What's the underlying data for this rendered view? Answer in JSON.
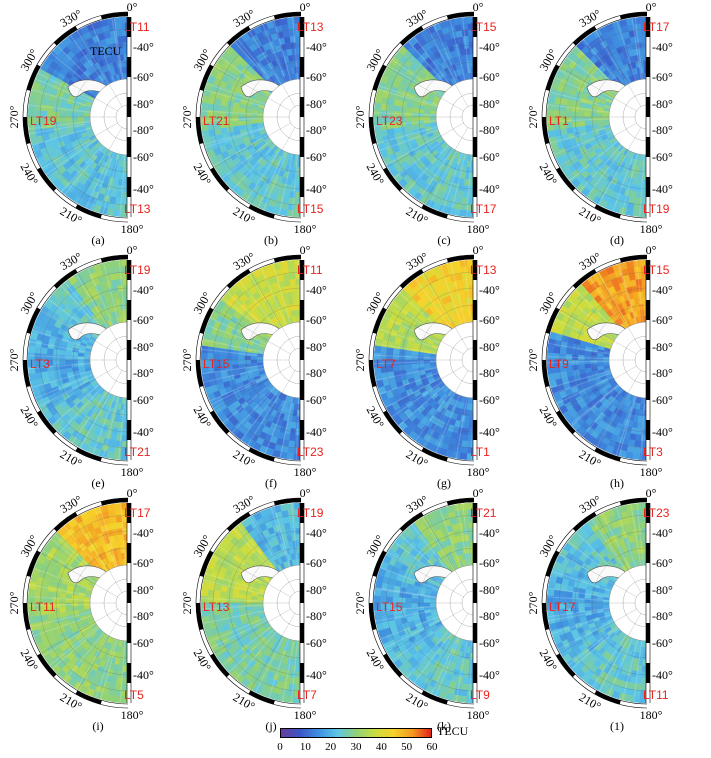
{
  "figure": {
    "panels": [
      {
        "id": "a",
        "caption": "(a)",
        "lt_top": "LT11",
        "lt_left": "LT19",
        "lt_bottom": "LT13",
        "level": "low",
        "show_unit": true
      },
      {
        "id": "b",
        "caption": "(b)",
        "lt_top": "LT13",
        "lt_left": "LT21",
        "lt_bottom": "LT15",
        "level": "lowmid"
      },
      {
        "id": "c",
        "caption": "(c)",
        "lt_top": "LT15",
        "lt_left": "LT23",
        "lt_bottom": "LT17",
        "level": "lowmid"
      },
      {
        "id": "d",
        "caption": "(d)",
        "lt_top": "LT17",
        "lt_left": "LT1",
        "lt_bottom": "LT19",
        "level": "lowmid"
      },
      {
        "id": "e",
        "caption": "(e)",
        "lt_top": "LT19",
        "lt_left": "LT3",
        "lt_bottom": "LT21",
        "level": "mid"
      },
      {
        "id": "f",
        "caption": "(f)",
        "lt_top": "LT11",
        "lt_left": "LT15",
        "lt_bottom": "LT23",
        "level": "split-top"
      },
      {
        "id": "g",
        "caption": "(g)",
        "lt_top": "LT13",
        "lt_left": "LT7",
        "lt_bottom": "LT1",
        "level": "split-top-high"
      },
      {
        "id": "h",
        "caption": "(h)",
        "lt_top": "LT15",
        "lt_left": "LT9",
        "lt_bottom": "LT3",
        "level": "split-top-peak"
      },
      {
        "id": "i",
        "caption": "(i)",
        "lt_top": "LT17",
        "lt_left": "LT11",
        "lt_bottom": "LT5",
        "level": "high"
      },
      {
        "id": "j",
        "caption": "(j)",
        "lt_top": "LT19",
        "lt_left": "LT13",
        "lt_bottom": "LT7",
        "level": "mid-high"
      },
      {
        "id": "k",
        "caption": "(k)",
        "lt_top": "LT21",
        "lt_left": "LT15",
        "lt_bottom": "LT9",
        "level": "mid"
      },
      {
        "id": "l",
        "caption": "(1)",
        "lt_top": "LT23",
        "lt_left": "LT17",
        "lt_bottom": "LT11",
        "level": "mid"
      }
    ],
    "longitude_labels": [
      "0°",
      "330°",
      "300°",
      "270°",
      "240°",
      "210°",
      "180°"
    ],
    "latitude_labels": [
      "-40°",
      "-60°",
      "-80°",
      "-80°",
      "-60°",
      "-40°"
    ],
    "unit_inline": "TECU",
    "colorbar": {
      "ticks": [
        "0",
        "10",
        "20",
        "30",
        "40",
        "50",
        "60"
      ],
      "unit": "TECU",
      "min": 0,
      "max": 60,
      "colors": [
        "#6a3d9a",
        "#3a56c8",
        "#3f8fe0",
        "#5cc6e6",
        "#8fd17a",
        "#c9dd40",
        "#f6d22a",
        "#f39a23",
        "#e2231a"
      ]
    }
  }
}
